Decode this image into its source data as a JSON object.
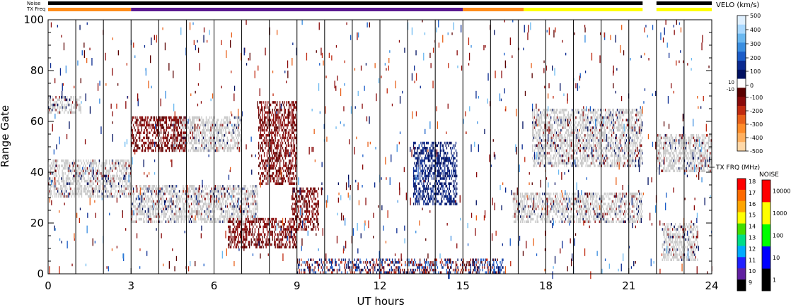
{
  "chart_data": {
    "type": "heatmap",
    "title": "",
    "xlabel": "UT hours",
    "ylabel": "Range Gate",
    "xlim": [
      0,
      24
    ],
    "ylim": [
      0,
      100
    ],
    "x_ticks": [
      "0",
      "3",
      "6",
      "9",
      "12",
      "15",
      "18",
      "21",
      "24"
    ],
    "x_tick_values": [
      0,
      3,
      6,
      9,
      12,
      15,
      18,
      21,
      24
    ],
    "y_ticks": [
      "0",
      "20",
      "40",
      "60",
      "80",
      "100"
    ],
    "y_tick_values": [
      0,
      20,
      40,
      60,
      80,
      100
    ],
    "hour_gridlines": [
      1,
      2,
      3,
      4,
      5,
      6,
      7,
      8,
      9,
      10,
      11,
      12,
      13,
      14,
      15,
      16,
      17,
      18,
      19,
      20,
      21,
      22,
      23
    ],
    "top_bars": {
      "noise_label": "Noise",
      "txfreq_label": "TX Freq",
      "noise_gap_hours": [
        21.5,
        22.0
      ],
      "tx_freq_segments": [
        {
          "start": 0,
          "end": 3,
          "color": "#ff8c1a"
        },
        {
          "start": 3,
          "end": 15,
          "color": "#5a1890"
        },
        {
          "start": 15,
          "end": 17.2,
          "color": "#ff8c1a"
        },
        {
          "start": 17.2,
          "end": 21.5,
          "color": "#ffff00"
        },
        {
          "start": 22.0,
          "end": 24,
          "color": "#ffff00"
        }
      ]
    },
    "echo_regions": [
      {
        "name": "ground scatter early",
        "t0": 0,
        "t1": 3,
        "g0": 30,
        "g1": 45,
        "kind": "gs"
      },
      {
        "name": "ground scatter upper early",
        "t0": 0,
        "t1": 1.2,
        "g0": 63,
        "g1": 70,
        "kind": "gs"
      },
      {
        "name": "ground scatter lower band",
        "t0": 3,
        "t1": 7.6,
        "g0": 20,
        "g1": 35,
        "kind": "gs"
      },
      {
        "name": "ground scatter rising band",
        "t0": 4.5,
        "t1": 7.0,
        "g0": 48,
        "g1": 62,
        "kind": "gs"
      },
      {
        "name": "receding echoes arc",
        "t0": 3,
        "t1": 5,
        "g0": 48,
        "g1": 62,
        "kind": "neg"
      },
      {
        "name": "receding streak",
        "t0": 7.6,
        "t1": 9.0,
        "g0": 35,
        "g1": 68,
        "kind": "neg"
      },
      {
        "name": "receding blob",
        "t0": 8.8,
        "t1": 9.8,
        "g0": 17,
        "g1": 34,
        "kind": "neg"
      },
      {
        "name": "receding band low",
        "t0": 6.5,
        "t1": 9.0,
        "g0": 10,
        "g1": 22,
        "kind": "neg"
      },
      {
        "name": "approaching cluster",
        "t0": 13.2,
        "t1": 14.8,
        "g0": 27,
        "g1": 52,
        "kind": "pos"
      },
      {
        "name": "near range echoes",
        "t0": 9.0,
        "t1": 16.5,
        "g0": 0,
        "g1": 6,
        "kind": "mix"
      },
      {
        "name": "evening ground scatter",
        "t0": 16.8,
        "t1": 21.5,
        "g0": 20,
        "g1": 32,
        "kind": "gs"
      },
      {
        "name": "evening ground scatter upper",
        "t0": 17.5,
        "t1": 21.5,
        "g0": 42,
        "g1": 65,
        "kind": "gs"
      },
      {
        "name": "late ground scatter",
        "t0": 22,
        "t1": 24,
        "g0": 40,
        "g1": 55,
        "kind": "gs"
      },
      {
        "name": "late ground scatter low",
        "t0": 22.2,
        "t1": 23.5,
        "g0": 5,
        "g1": 20,
        "kind": "gs"
      }
    ],
    "velocity_colorbar": {
      "title": "VELO (km/s)",
      "labels": [
        "500",
        "400",
        "300",
        "200",
        "100",
        "10",
        "0",
        "-10",
        "-100",
        "-200",
        "-300",
        "-400",
        "-500"
      ],
      "colors_top_to_bottom": [
        "#dff0ff",
        "#a8d8ff",
        "#6ab8f0",
        "#3a8ee0",
        "#1a5cc8",
        "#0a2a90",
        "#001060",
        "#ffffff",
        "#5a0000",
        "#8a0a0a",
        "#c02a10",
        "#e8601a",
        "#ff8c2a",
        "#ffb060",
        "#ffd8a8"
      ]
    },
    "txfreq_colorbar": {
      "title": "TX FRQ (MHz)",
      "labels": [
        "18",
        "17",
        "16",
        "15",
        "14",
        "13",
        "12",
        "11",
        "10",
        "9"
      ],
      "colors_top_to_bottom": [
        "#ff0000",
        "#ff6a00",
        "#ffa500",
        "#ffff00",
        "#44dd00",
        "#00dd88",
        "#00aaff",
        "#2020ff",
        "#6020a0",
        "#000000"
      ]
    },
    "noise_colorbar": {
      "title": "NOISE",
      "labels": [
        "10000",
        "1000",
        "100",
        "10",
        "1"
      ],
      "colors_top_to_bottom": [
        "#ff0000",
        "#ffff00",
        "#00ff00",
        "#0000ff",
        "#000000"
      ]
    }
  }
}
